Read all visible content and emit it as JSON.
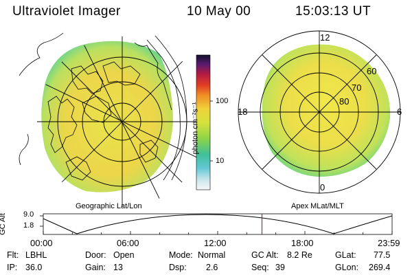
{
  "header": {
    "instrument": "Ultraviolet Imager",
    "date": "10 May 00",
    "time": "15:03:13 UT"
  },
  "panels": {
    "left_label": "Geographic Lat/Lon",
    "right_label": "Apex MLat/MLT"
  },
  "colorbar": {
    "unit_label": "photon cm⁻²s⁻¹",
    "tick_100": "100",
    "tick_10": "10"
  },
  "polar_plot": {
    "mlt_12": "12",
    "mlt_18": "18",
    "mlt_6": "6",
    "mlt_0": "0",
    "lat_60": "60",
    "lat_70": "70",
    "lat_80": "80"
  },
  "altitude_plot": {
    "ylabel": "GC Alt",
    "y_top": "9.0",
    "y_bottom": "1.8",
    "x_ticks": [
      "00:00",
      "06:00",
      "12:00",
      "18:00",
      "23:59"
    ],
    "current_marker_hour": 15.05
  },
  "info": {
    "flt_label": "Flt:",
    "flt_value": "LBHL",
    "ip_label": "IP:",
    "ip_value": "36.0",
    "door_label": "Door:",
    "door_value": "Open",
    "gain_label": "Gain:",
    "gain_value": "13",
    "mode_label": "Mode:",
    "mode_value": "Normal",
    "dsp_label": "Dsp:",
    "dsp_value": "2.6",
    "gcalt_label": "GC Alt:",
    "gcalt_value": "8.2 Re",
    "seq_label": "Seq:",
    "seq_value": "39",
    "glat_label": "GLat:",
    "glat_value": "77.5",
    "glon_label": "GLon:",
    "glon_value": "269.4"
  },
  "colors": {
    "background": "#ffffff",
    "marker": "#c00000",
    "grid": "#000000"
  }
}
